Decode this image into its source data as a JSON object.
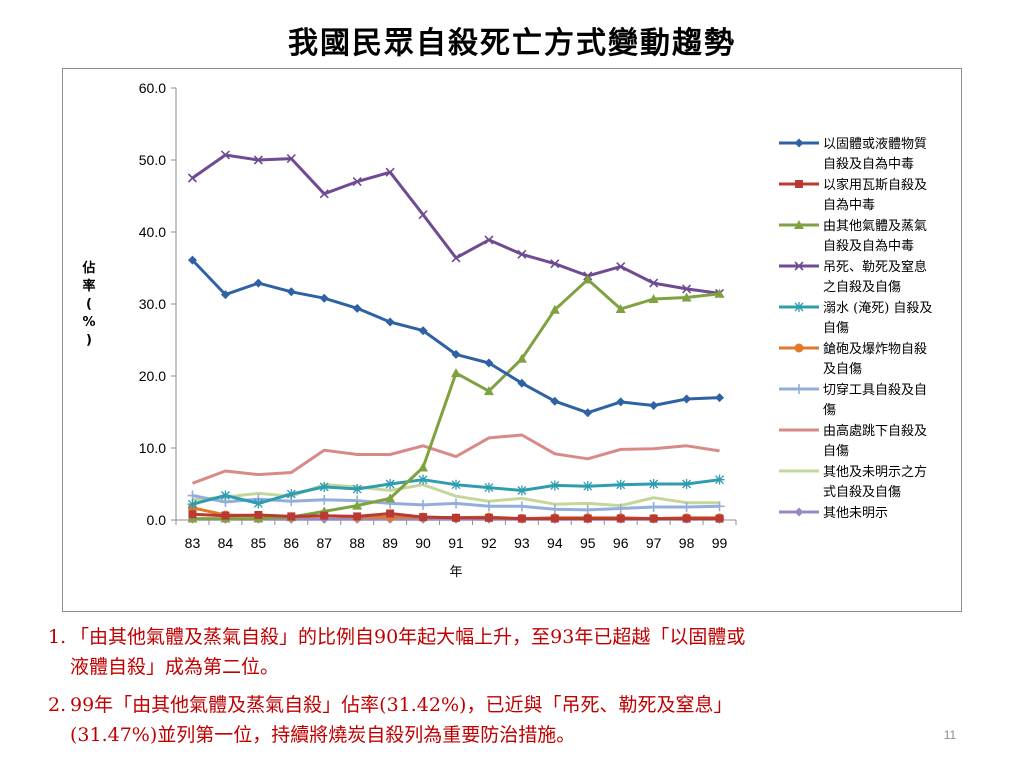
{
  "slide": {
    "title": "我國民眾自殺死亡方式變動趨勢",
    "page_number": "11"
  },
  "notes": [
    {
      "number": "1.",
      "line1": "「由其他氣體及蒸氣自殺」的比例自90年起大幅上升，至93年已超越「以固體或",
      "line2": "液體自殺」成為第二位。"
    },
    {
      "number": "2.",
      "line1": "99年「由其他氣體及蒸氣自殺」佔率(31.42%)，已近與「吊死、勒死及窒息」",
      "line2": "(31.47%)並列第一位，持續將燒炭自殺列為重要防治措施。"
    }
  ],
  "chart_data": {
    "type": "line",
    "title": "",
    "xlabel": "年",
    "ylabel": "佔率(%)",
    "ylim": [
      0,
      60
    ],
    "yticks": [
      "0.0",
      "10.0",
      "20.0",
      "30.0",
      "40.0",
      "50.0",
      "60.0"
    ],
    "grid": false,
    "legend_position": "right",
    "categories": [
      "83",
      "84",
      "85",
      "86",
      "87",
      "88",
      "89",
      "90",
      "91",
      "92",
      "93",
      "94",
      "95",
      "96",
      "97",
      "98",
      "99"
    ],
    "series": [
      {
        "name": "以固體或液體物質自殺及自為中毒",
        "legend_lines": [
          "以固體或液體物質",
          "自殺及自為中毒"
        ],
        "color": "#2e62a5",
        "marker": "diamond",
        "values": [
          36.1,
          31.3,
          32.9,
          31.7,
          30.8,
          29.4,
          27.5,
          26.3,
          23.0,
          21.8,
          19.0,
          16.5,
          14.9,
          16.4,
          15.9,
          16.8,
          17.0
        ]
      },
      {
        "name": "以家用瓦斯自殺及自為中毒",
        "legend_lines": [
          "以家用瓦斯自殺及",
          "自為中毒"
        ],
        "color": "#b83b33",
        "marker": "square",
        "values": [
          0.8,
          0.6,
          0.7,
          0.5,
          0.6,
          0.5,
          0.9,
          0.4,
          0.3,
          0.3,
          0.2,
          0.2,
          0.2,
          0.2,
          0.2,
          0.2,
          0.2
        ]
      },
      {
        "name": "由其他氣體及蒸氣自殺及自為中毒",
        "legend_lines": [
          "由其他氣體及蒸氣",
          "自殺及自為中毒"
        ],
        "color": "#7fa240",
        "marker": "triangle",
        "values": [
          0.2,
          0.2,
          0.2,
          0.4,
          1.2,
          2.0,
          3.0,
          7.3,
          20.4,
          17.9,
          22.4,
          29.2,
          33.4,
          29.3,
          30.7,
          30.9,
          31.42
        ]
      },
      {
        "name": "吊死、勒死及窒息之自殺及自傷",
        "legend_lines": [
          "吊死、勒死及窒息",
          "之自殺及自傷"
        ],
        "color": "#6f4b93",
        "marker": "x",
        "values": [
          47.5,
          50.7,
          50.0,
          50.2,
          45.3,
          47.0,
          48.3,
          42.4,
          36.4,
          38.9,
          36.9,
          35.6,
          33.9,
          35.2,
          32.9,
          32.1,
          31.47
        ]
      },
      {
        "name": "溺水(淹死)自殺及自傷",
        "legend_lines": [
          "溺水 (淹死) 自殺及",
          "自傷"
        ],
        "color": "#2f9cb0",
        "marker": "star",
        "values": [
          2.2,
          3.4,
          2.3,
          3.6,
          4.6,
          4.3,
          5.0,
          5.6,
          4.9,
          4.5,
          4.1,
          4.8,
          4.7,
          4.9,
          5.0,
          5.0,
          5.6
        ]
      },
      {
        "name": "鎗砲及爆炸物自殺及自傷",
        "legend_lines": [
          "鎗砲及爆炸物自殺",
          "及自傷"
        ],
        "color": "#e07a2a",
        "marker": "circle",
        "values": [
          1.7,
          0.7,
          0.6,
          0.4,
          0.6,
          0.4,
          0.4,
          0.4,
          0.3,
          0.4,
          0.2,
          0.3,
          0.3,
          0.3,
          0.2,
          0.3,
          0.3
        ]
      },
      {
        "name": "切穿工具自殺及自傷",
        "legend_lines": [
          "切穿工具自殺及自",
          "傷"
        ],
        "color": "#94aedb",
        "marker": "plus",
        "values": [
          3.4,
          2.5,
          2.9,
          2.6,
          2.8,
          2.7,
          2.3,
          2.1,
          2.3,
          1.9,
          1.9,
          1.5,
          1.4,
          1.6,
          1.8,
          1.8,
          1.9
        ]
      },
      {
        "name": "由高處跳下自殺及自傷",
        "legend_lines": [
          "由高處跳下自殺及",
          "自傷"
        ],
        "color": "#d98a86",
        "marker": "none",
        "values": [
          5.1,
          6.8,
          6.3,
          6.6,
          9.7,
          9.1,
          9.1,
          10.3,
          8.8,
          11.4,
          11.8,
          9.2,
          8.5,
          9.8,
          9.9,
          10.3,
          9.6
        ]
      },
      {
        "name": "其他及未明示之方式自殺及自傷",
        "legend_lines": [
          "其他及未明示之方",
          "式自殺及自傷"
        ],
        "color": "#c4d79b",
        "marker": "none",
        "values": [
          2.8,
          3.2,
          3.7,
          3.3,
          4.9,
          4.6,
          4.1,
          4.9,
          3.3,
          2.6,
          3.0,
          2.2,
          2.3,
          2.0,
          3.1,
          2.4,
          2.4
        ]
      },
      {
        "name": "其他未明示",
        "legend_lines": [
          "其他未明示"
        ],
        "color": "#9b88c2",
        "marker": "diamond",
        "values": [
          0.1,
          0.1,
          0.1,
          0.1,
          0.1,
          0.1,
          0.1,
          0.1,
          0.1,
          0.1,
          0.1,
          0.1,
          0.1,
          0.1,
          0.1,
          0.1,
          0.1
        ]
      }
    ]
  }
}
